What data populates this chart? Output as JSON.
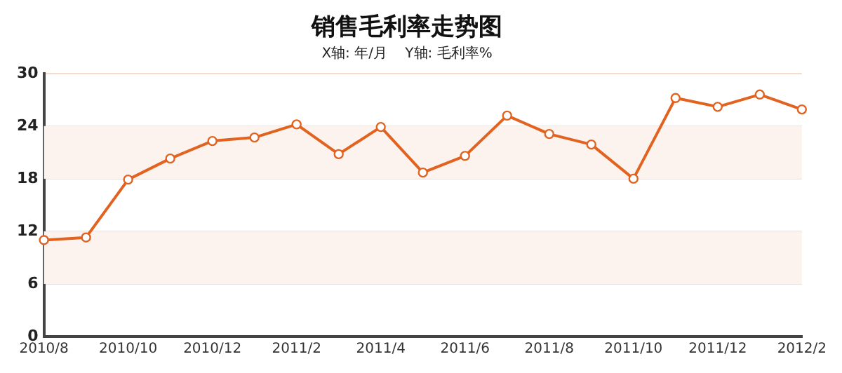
{
  "chart_data": {
    "type": "line",
    "title": "销售毛利率走势图",
    "subtitle": "X轴: 年/月    Y轴: 毛利率%",
    "categories": [
      "2010/8",
      null,
      "2010/10",
      null,
      "2010/12",
      null,
      "2011/2",
      null,
      "2011/4",
      null,
      "2011/6",
      null,
      "2011/8",
      null,
      "2011/10",
      null,
      "2011/12",
      null,
      "2012/2"
    ],
    "series": [
      {
        "color": "#e2621f",
        "values": [
          11.0,
          11.3,
          17.9,
          20.3,
          22.3,
          22.7,
          24.2,
          20.8,
          23.9,
          18.7,
          20.6,
          25.2,
          23.1,
          21.9,
          18.0,
          27.2,
          26.2,
          27.6,
          25.9
        ]
      }
    ],
    "ylim": [
      0,
      30
    ],
    "yticks": [
      0,
      6,
      12,
      18,
      24,
      30
    ],
    "grid": "y",
    "marker": "circle",
    "line_style": "solid",
    "legend": false
  }
}
